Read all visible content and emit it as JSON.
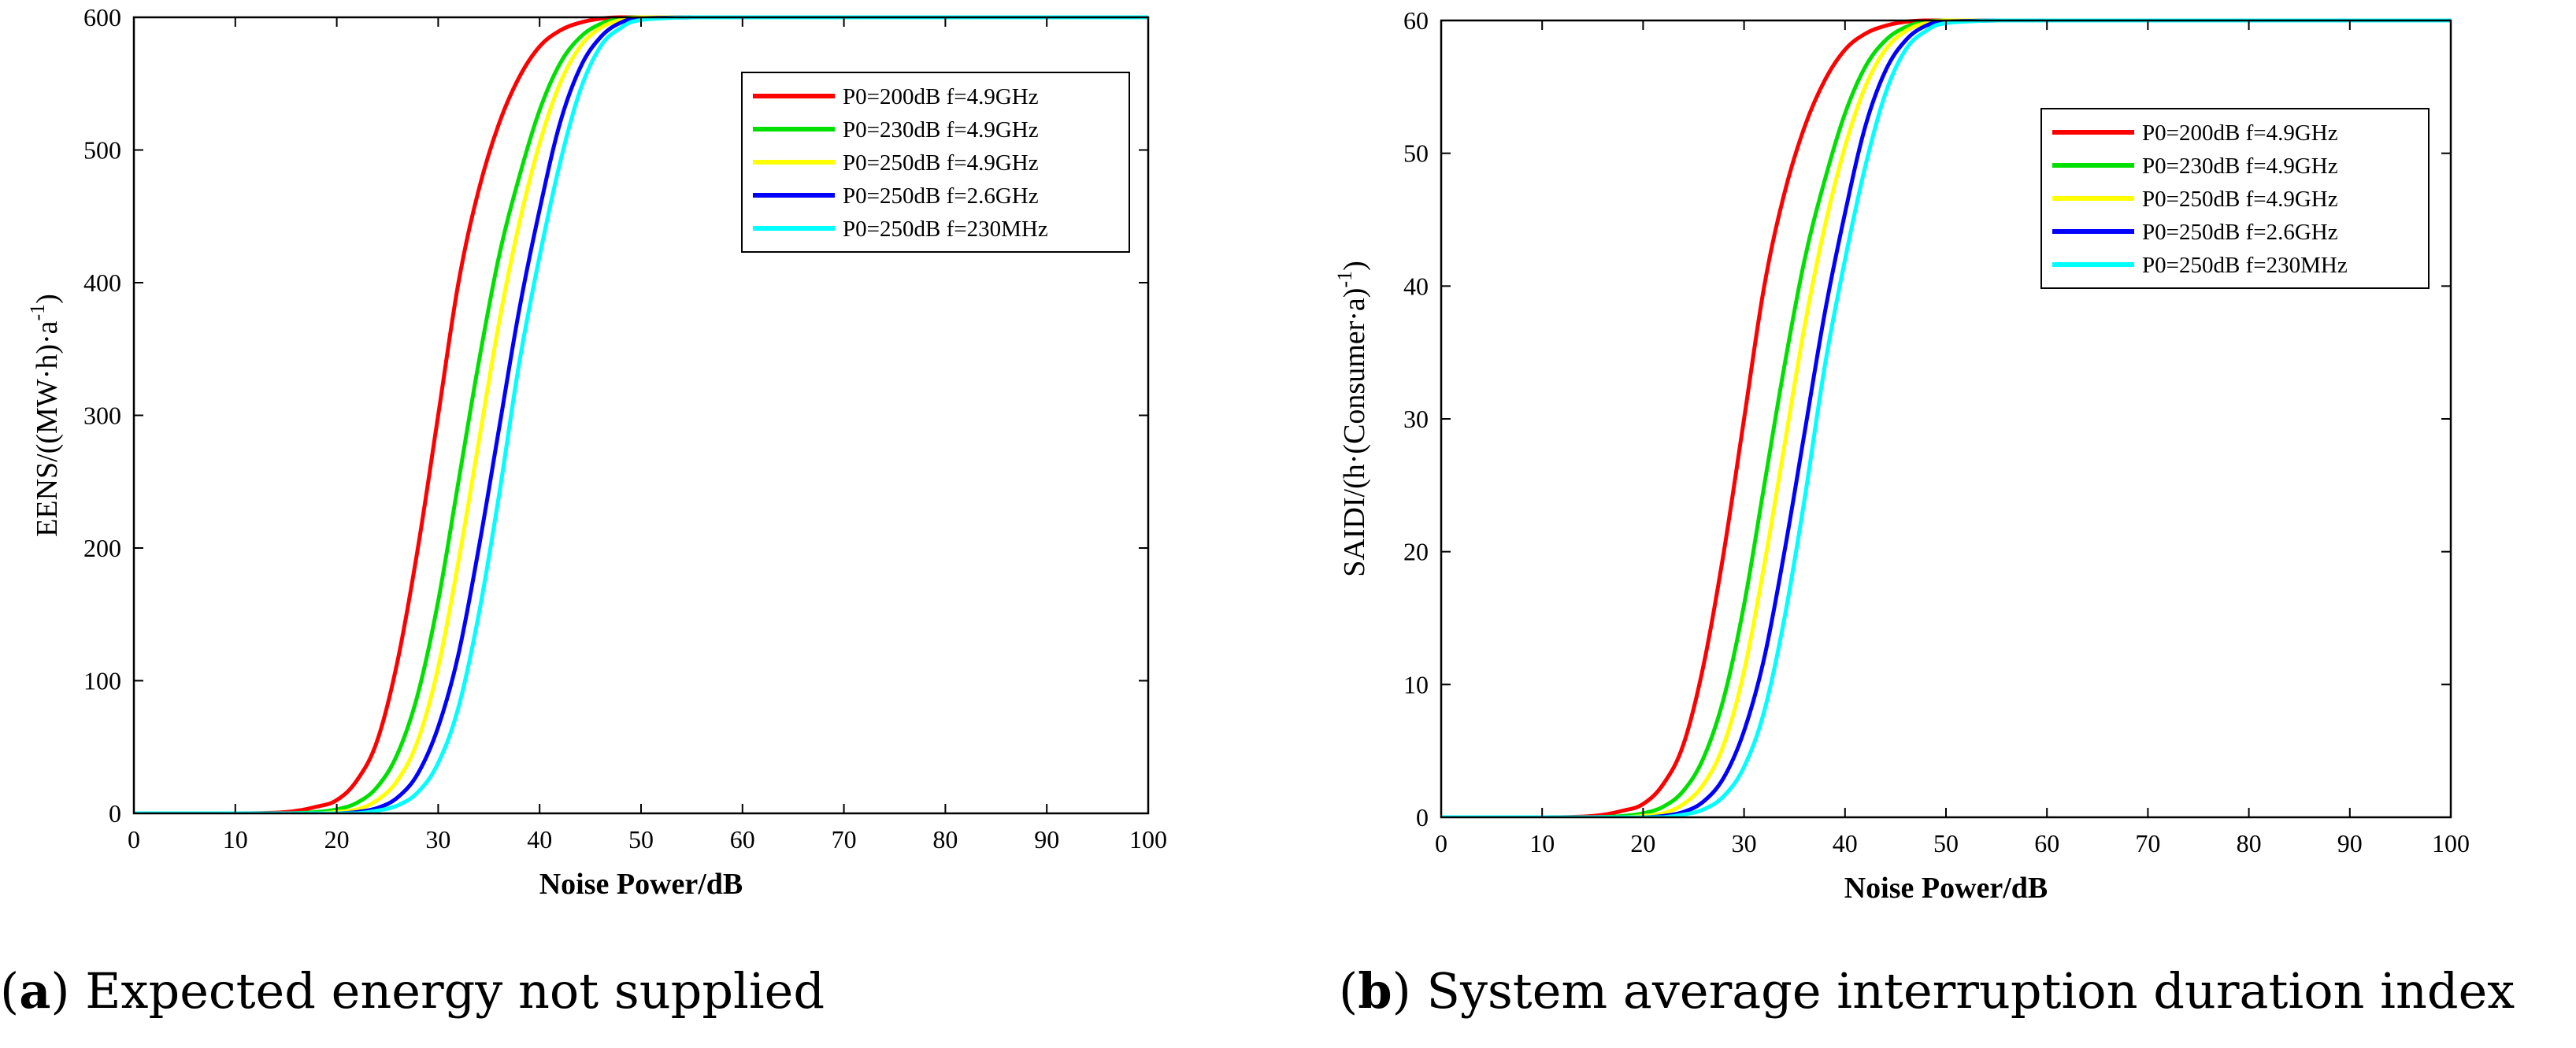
{
  "chart_data": [
    {
      "type": "line",
      "panel": "a",
      "title": "",
      "xlabel": "Noise Power/dB",
      "ylabel": "EENS/((MW·h)·a",
      "ylabel_sup": "-1",
      "ylabel_close": ")",
      "xlim": [
        0,
        100
      ],
      "ylim": [
        0,
        600
      ],
      "xticks": [
        "0",
        "10",
        "20",
        "30",
        "40",
        "50",
        "60",
        "70",
        "80",
        "90",
        "100"
      ],
      "yticks": [
        "0",
        "100",
        "200",
        "300",
        "400",
        "500",
        "600"
      ],
      "grid": false,
      "legend_position": "top-right",
      "x": [
        0,
        10,
        15,
        18,
        20,
        22,
        24,
        26,
        28,
        30,
        32,
        34,
        36,
        38,
        40,
        42,
        44,
        46,
        48,
        50,
        55,
        60,
        70,
        80,
        90,
        100
      ],
      "series": [
        {
          "name": "P0=200dB f=4.9GHz",
          "color": "#ff0000",
          "values": [
            0,
            0,
            1,
            5,
            10,
            25,
            55,
            115,
            200,
            300,
            400,
            470,
            520,
            555,
            578,
            590,
            596,
            599,
            600,
            600,
            600,
            600,
            600,
            600,
            600,
            600
          ]
        },
        {
          "name": "P0=230dB f=4.9GHz",
          "color": "#00e000",
          "values": [
            0,
            0,
            0,
            1,
            3,
            8,
            20,
            45,
            90,
            160,
            250,
            340,
            420,
            480,
            530,
            565,
            585,
            595,
            599,
            600,
            600,
            600,
            600,
            600,
            600,
            600
          ]
        },
        {
          "name": "P0=250dB f=4.9GHz",
          "color": "#ffff00",
          "values": [
            0,
            0,
            0,
            0,
            1,
            3,
            10,
            25,
            55,
            110,
            190,
            280,
            370,
            445,
            505,
            550,
            578,
            592,
            598,
            600,
            600,
            600,
            600,
            600,
            600,
            600
          ]
        },
        {
          "name": "P0=250dB f=2.6GHz",
          "color": "#0000ff",
          "values": [
            0,
            0,
            0,
            0,
            0,
            1,
            4,
            12,
            30,
            65,
            120,
            200,
            290,
            380,
            455,
            520,
            562,
            585,
            596,
            599,
            600,
            600,
            600,
            600,
            600,
            600
          ]
        },
        {
          "name": "P0=250dB f=230MHz",
          "color": "#00ffff",
          "values": [
            0,
            0,
            0,
            0,
            0,
            0,
            2,
            6,
            16,
            38,
            80,
            150,
            240,
            340,
            420,
            490,
            545,
            578,
            592,
            598,
            600,
            600,
            600,
            600,
            600,
            600
          ]
        }
      ]
    },
    {
      "type": "line",
      "panel": "b",
      "title": "",
      "xlabel": "Noise Power/dB",
      "ylabel": "SAIDI/(h·(Consumer·a)",
      "ylabel_sup": "-1",
      "ylabel_close": ")",
      "xlim": [
        0,
        100
      ],
      "ylim": [
        0,
        60
      ],
      "xticks": [
        "0",
        "10",
        "20",
        "30",
        "40",
        "50",
        "60",
        "70",
        "80",
        "90",
        "100"
      ],
      "yticks": [
        "0",
        "10",
        "20",
        "30",
        "40",
        "50",
        "60"
      ],
      "grid": false,
      "legend_position": "top-right",
      "x": [
        0,
        10,
        15,
        18,
        20,
        22,
        24,
        26,
        28,
        30,
        32,
        34,
        36,
        38,
        40,
        42,
        44,
        46,
        48,
        50,
        55,
        60,
        70,
        80,
        90,
        100
      ],
      "series": [
        {
          "name": "P0=200dB f=4.9GHz",
          "color": "#ff0000",
          "values": [
            0,
            0,
            0.1,
            0.5,
            1,
            2.5,
            5.5,
            11.5,
            20,
            30,
            40,
            47,
            52,
            55.5,
            57.8,
            59,
            59.6,
            59.9,
            60,
            60,
            60,
            60,
            60,
            60,
            60,
            60
          ]
        },
        {
          "name": "P0=230dB f=4.9GHz",
          "color": "#00e000",
          "values": [
            0,
            0,
            0,
            0.1,
            0.3,
            0.8,
            2,
            4.5,
            9,
            16,
            25,
            34,
            42,
            48,
            53,
            56.5,
            58.5,
            59.5,
            59.9,
            60,
            60,
            60,
            60,
            60,
            60,
            60
          ]
        },
        {
          "name": "P0=250dB f=4.9GHz",
          "color": "#ffff00",
          "values": [
            0,
            0,
            0,
            0,
            0.1,
            0.3,
            1,
            2.5,
            5.5,
            11,
            19,
            28,
            37,
            44.5,
            50.5,
            55,
            57.8,
            59.2,
            59.8,
            60,
            60,
            60,
            60,
            60,
            60,
            60
          ]
        },
        {
          "name": "P0=250dB f=2.6GHz",
          "color": "#0000ff",
          "values": [
            0,
            0,
            0,
            0,
            0,
            0.1,
            0.4,
            1.2,
            3,
            6.5,
            12,
            20,
            29,
            38,
            45.5,
            52,
            56.2,
            58.5,
            59.6,
            59.9,
            60,
            60,
            60,
            60,
            60,
            60
          ]
        },
        {
          "name": "P0=250dB f=230MHz",
          "color": "#00ffff",
          "values": [
            0,
            0,
            0,
            0,
            0,
            0,
            0.2,
            0.6,
            1.6,
            3.8,
            8,
            15,
            24,
            34,
            42,
            49,
            54.5,
            57.8,
            59.2,
            59.8,
            60,
            60,
            60,
            60,
            60,
            60
          ]
        }
      ]
    }
  ],
  "captions": {
    "a": {
      "tag": "a",
      "text": "Expected energy not supplied"
    },
    "b": {
      "tag": "b",
      "text": "System average interruption duration index"
    }
  }
}
